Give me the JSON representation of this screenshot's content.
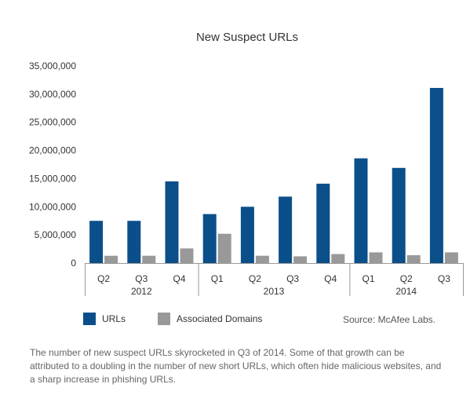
{
  "colors": {
    "urls": "#0b4f8a",
    "domains": "#999999",
    "axis": "#999999"
  },
  "chart_data": {
    "type": "bar",
    "title": "New Suspect URLs",
    "categories": [
      "Q2",
      "Q3",
      "Q4",
      "Q1",
      "Q2",
      "Q3",
      "Q4",
      "Q1",
      "Q2",
      "Q3"
    ],
    "groups": [
      {
        "label": "2012",
        "start": 0,
        "end": 2
      },
      {
        "label": "2013",
        "start": 3,
        "end": 6
      },
      {
        "label": "2014",
        "start": 7,
        "end": 9
      }
    ],
    "series": [
      {
        "name": "URLs",
        "values": [
          7500000,
          7500000,
          14500000,
          8700000,
          10000000,
          11800000,
          14100000,
          18600000,
          16900000,
          31100000
        ]
      },
      {
        "name": "Associated Domains",
        "values": [
          1300000,
          1300000,
          2600000,
          5200000,
          1300000,
          1200000,
          1600000,
          1900000,
          1400000,
          1900000
        ]
      }
    ],
    "yticks": [
      "0",
      "5,000,000",
      "10,000,000",
      "15,000,000",
      "20,000,000",
      "25,000,000",
      "30,000,000",
      "35,000,000"
    ],
    "ylim": [
      0,
      35000000
    ],
    "legend_position": "bottom-left",
    "grid": false
  },
  "legend": {
    "urls": "URLs",
    "domains": "Associated Domains"
  },
  "source": "Source: McAfee Labs.",
  "caption": "The number of new suspect URLs skyrocketed in Q3 of 2014. Some of that growth can be attributed to a doubling in the number of new short URLs, which often hide malicious websites, and a sharp increase in phishing URLs."
}
